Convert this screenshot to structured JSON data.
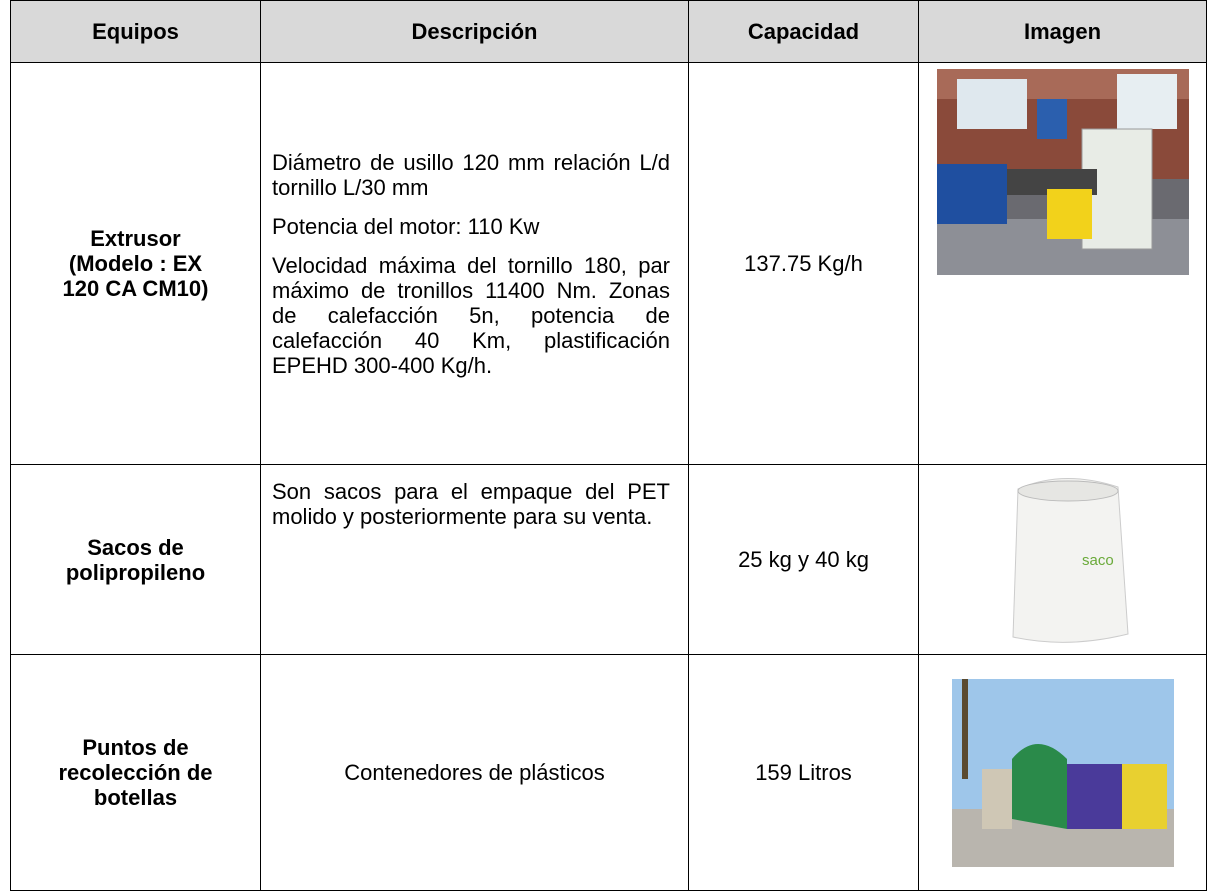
{
  "table": {
    "header": [
      "Equipos",
      "Descripción",
      "Capacidad",
      "Imagen"
    ],
    "rows": [
      {
        "equipo": [
          "Extrusor",
          "(Modelo : EX",
          "120 CA CM10)"
        ],
        "descripcion": [
          "Diámetro de usillo 120 mm relación L/d tornillo L/30 mm",
          "Potencia del motor: 110 Kw",
          "Velocidad máxima del tornillo 180, par máximo de tronillos 11400 Nm. Zonas de calefacción 5n, potencia de calefacción 40 Km, plastificación EPEHD 300-400 Kg/h."
        ],
        "capacidad": "137.75 Kg/h"
      },
      {
        "equipo": [
          "Sacos de",
          "polipropileno"
        ],
        "descripcion": [
          "Son sacos para el empaque del PET molido y posteriormente para su venta."
        ],
        "capacidad": "25 kg y 40 kg",
        "imagen_texto": "saco"
      },
      {
        "equipo": [
          "Puntos de",
          "recolección de",
          "botellas"
        ],
        "descripcion": [
          "Contenedores de plásticos"
        ],
        "capacidad": "159 Litros"
      }
    ]
  }
}
